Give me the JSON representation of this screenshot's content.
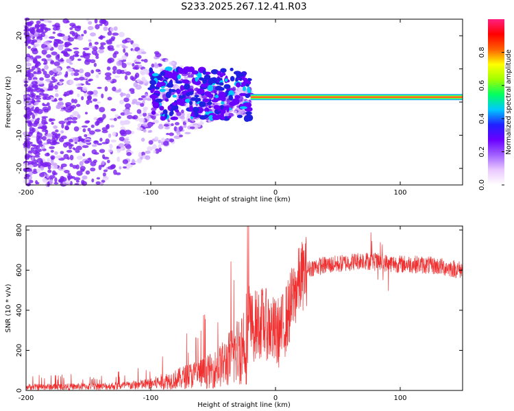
{
  "title": "S233.2025.267.12.41.R03",
  "chart_data": [
    {
      "type": "heatmap",
      "xlabel": "Height of straight line (km)",
      "ylabel": "Frequency (Hz)",
      "xlim": [
        -200,
        150
      ],
      "ylim": [
        -25,
        25
      ],
      "xticks": [
        -200,
        -100,
        0,
        100
      ],
      "yticks": [
        -20,
        -10,
        0,
        10,
        20
      ],
      "colorbar": {
        "label": "Normalized spectral amplitude",
        "range": [
          0.0,
          1.0
        ],
        "ticks": [
          0.0,
          0.2,
          0.4,
          0.6,
          0.8
        ],
        "tick_labels": [
          "0.0",
          "0.2",
          "0.4",
          "0.6",
          "0.8"
        ],
        "colors": [
          "#ffffff",
          "#e9c8ff",
          "#a060ff",
          "#6a00ff",
          "#2020ff",
          "#00c8ff",
          "#00ff60",
          "#a0ff00",
          "#ffff00",
          "#ff6000",
          "#ff0000",
          "#ff2080"
        ]
      },
      "features": [
        {
          "name": "noise scatter",
          "x_range": [
            -200,
            -20
          ],
          "y_range": [
            -25,
            25
          ],
          "amplitude": 0.15
        },
        {
          "name": "converging band",
          "x_range": [
            -100,
            -20
          ],
          "y_range": [
            -5,
            10
          ],
          "amplitude": 0.3
        },
        {
          "name": "carrier line",
          "x_range": [
            -20,
            150
          ],
          "frequency": 1.5,
          "amplitude": 0.95
        }
      ]
    },
    {
      "type": "line",
      "xlabel": "Height of straight line (km)",
      "ylabel": "SNR (10 * v/v)",
      "xlim": [
        -200,
        150
      ],
      "ylim": [
        0,
        820
      ],
      "xticks": [
        -200,
        -100,
        0,
        100
      ],
      "yticks": [
        0,
        200,
        400,
        600,
        800
      ],
      "series": [
        {
          "name": "SNR",
          "color": "#f03030",
          "x": [
            -200,
            -180,
            -160,
            -140,
            -120,
            -100,
            -90,
            -80,
            -70,
            -60,
            -50,
            -40,
            -35,
            -30,
            -25,
            -20,
            -15,
            -10,
            -5,
            0,
            5,
            10,
            15,
            20,
            25,
            30,
            40,
            50,
            60,
            70,
            80,
            90,
            100,
            110,
            120,
            130,
            140,
            150
          ],
          "values": [
            18,
            18,
            19,
            20,
            24,
            32,
            45,
            55,
            72,
            85,
            100,
            140,
            170,
            200,
            250,
            310,
            330,
            340,
            320,
            280,
            300,
            380,
            480,
            560,
            600,
            615,
            625,
            630,
            640,
            650,
            640,
            635,
            630,
            630,
            625,
            620,
            610,
            600
          ]
        }
      ]
    }
  ]
}
